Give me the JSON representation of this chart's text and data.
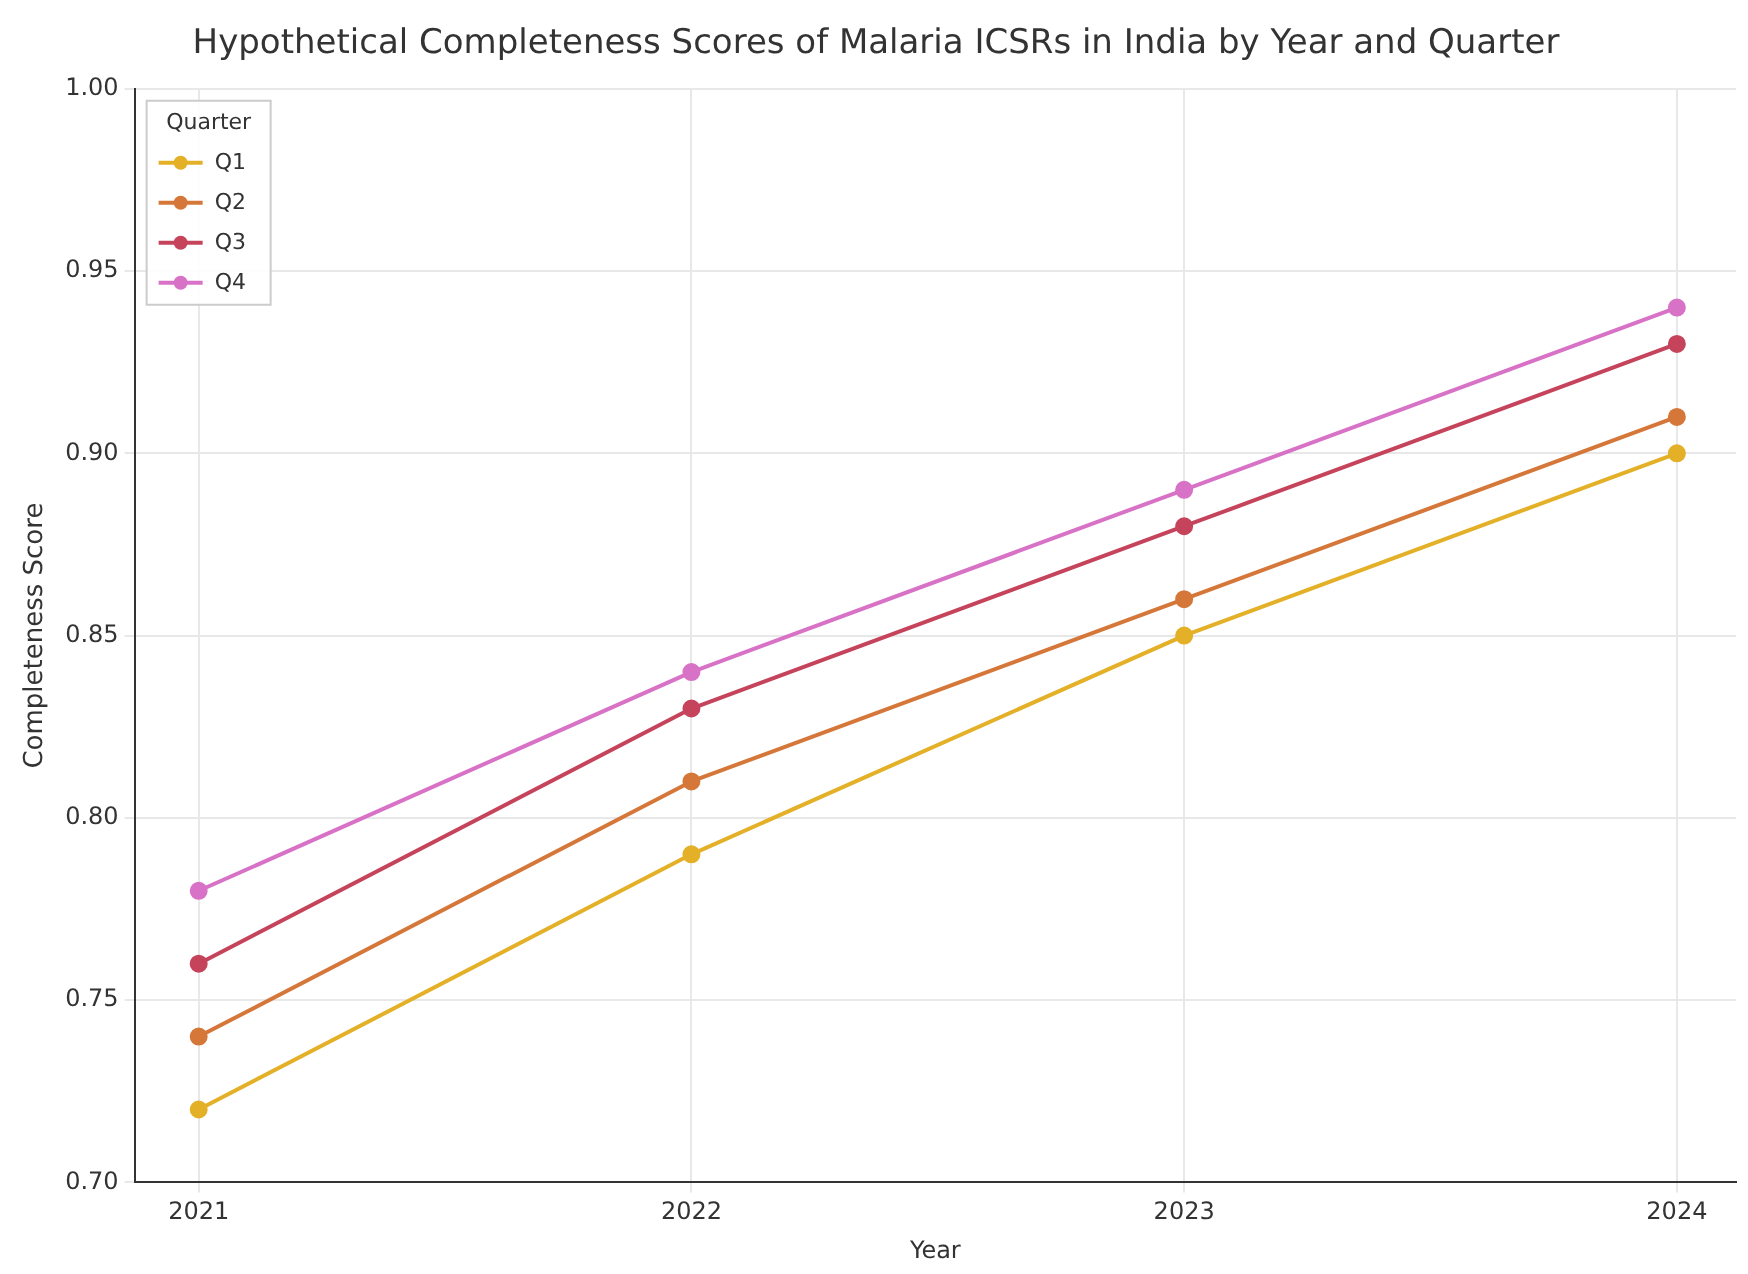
{
  "chart_data": {
    "type": "line",
    "title": "Hypothetical Completeness Scores of Malaria ICSRs in India by Year and Quarter",
    "xlabel": "Year",
    "ylabel": "Completeness Score",
    "legend_title": "Quarter",
    "legend": "top left",
    "grid": true,
    "marker": "circle",
    "line_style": "solid",
    "x": [
      2021,
      2022,
      2023,
      2024
    ],
    "xlim": [
      2020.87,
      2024.12
    ],
    "xticks": [
      2021,
      2022,
      2023,
      2024
    ],
    "ylim": [
      0.7,
      1.0
    ],
    "yticks": [
      {
        "value": 0.7,
        "label": "0.70"
      },
      {
        "value": 0.75,
        "label": "0.75"
      },
      {
        "value": 0.8,
        "label": "0.80"
      },
      {
        "value": 0.85,
        "label": "0.85"
      },
      {
        "value": 0.9,
        "label": "0.90"
      },
      {
        "value": 0.95,
        "label": "0.95"
      },
      {
        "value": 1.0,
        "label": "1.00"
      }
    ],
    "series": [
      {
        "name": "Q1",
        "color": "#e3b027",
        "values": [
          0.72,
          0.79,
          0.85,
          0.9
        ]
      },
      {
        "name": "Q2",
        "color": "#d6773a",
        "values": [
          0.74,
          0.81,
          0.86,
          0.91
        ]
      },
      {
        "name": "Q3",
        "color": "#c6435c",
        "values": [
          0.76,
          0.83,
          0.88,
          0.93
        ]
      },
      {
        "name": "Q4",
        "color": "#d872c6",
        "values": [
          0.78,
          0.84,
          0.89,
          0.94
        ]
      }
    ]
  }
}
